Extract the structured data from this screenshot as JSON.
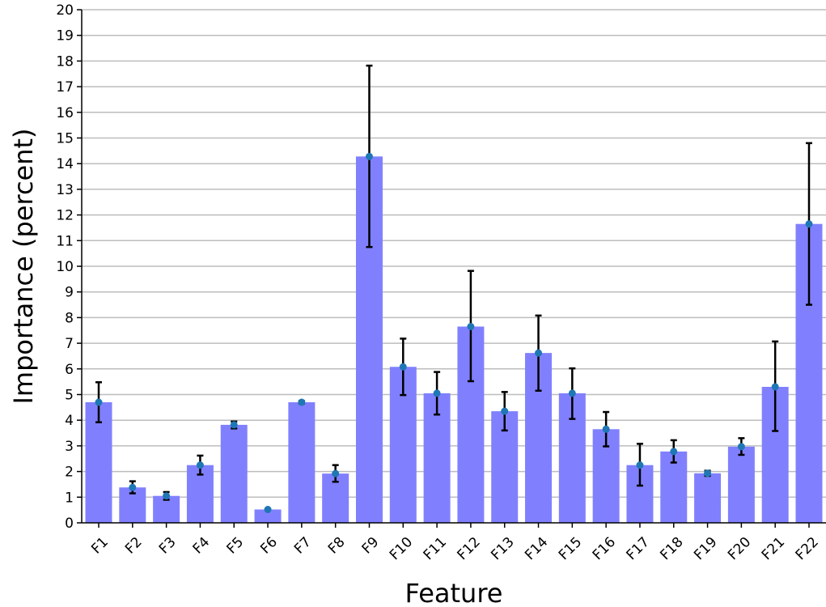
{
  "chart_data": {
    "type": "bar",
    "title": "",
    "xlabel": "Feature",
    "ylabel": "Importance (percent)",
    "ylim": [
      0,
      20
    ],
    "yticks": [
      0,
      1,
      2,
      3,
      4,
      5,
      6,
      7,
      8,
      9,
      10,
      11,
      12,
      13,
      14,
      15,
      16,
      17,
      18,
      19,
      20
    ],
    "grid": "horizontal",
    "categories": [
      "F1",
      "F2",
      "F3",
      "F4",
      "F5",
      "F6",
      "F7",
      "F8",
      "F9",
      "F10",
      "F11",
      "F12",
      "F13",
      "F14",
      "F15",
      "F16",
      "F17",
      "F18",
      "F19",
      "F20",
      "F21",
      "F22"
    ],
    "values": [
      4.7,
      1.38,
      1.05,
      2.25,
      3.82,
      0.52,
      4.7,
      1.92,
      14.28,
      6.08,
      5.05,
      7.65,
      4.35,
      6.62,
      5.05,
      3.65,
      2.25,
      2.78,
      1.93,
      2.97,
      5.3,
      11.65
    ],
    "error_low": [
      3.92,
      1.15,
      0.9,
      1.88,
      3.68,
      0.52,
      4.65,
      1.6,
      10.75,
      4.98,
      4.22,
      5.52,
      3.6,
      5.15,
      4.05,
      2.98,
      1.45,
      2.35,
      1.83,
      2.65,
      3.58,
      8.5
    ],
    "error_high": [
      5.48,
      1.62,
      1.2,
      2.62,
      3.95,
      0.52,
      4.75,
      2.25,
      17.82,
      7.18,
      5.88,
      9.82,
      5.1,
      8.08,
      6.02,
      4.32,
      3.08,
      3.22,
      2.03,
      3.3,
      7.07,
      14.8
    ],
    "colors": {
      "bar": "#8080ff",
      "point": "#1f77b4",
      "error": "#000000",
      "grid": "#bdbdbd",
      "axis": "#000000"
    }
  }
}
